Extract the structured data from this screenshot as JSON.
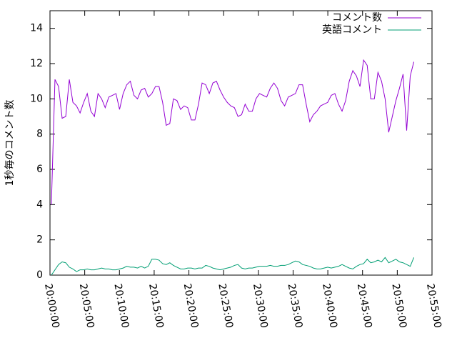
{
  "chart_data": {
    "type": "line",
    "ylabel": "1秒毎のコメント数",
    "x": [
      "20:00:12",
      "20:00:43",
      "20:01:14",
      "20:01:45",
      "20:02:16",
      "20:02:47",
      "20:03:18",
      "20:03:49",
      "20:04:20",
      "20:04:51",
      "20:05:22",
      "20:05:53",
      "20:06:24",
      "20:06:55",
      "20:07:26",
      "20:07:57",
      "20:08:28",
      "20:08:59",
      "20:09:30",
      "20:10:01",
      "20:10:32",
      "20:11:03",
      "20:11:34",
      "20:12:05",
      "20:12:36",
      "20:13:07",
      "20:13:38",
      "20:14:09",
      "20:14:40",
      "20:15:11",
      "20:15:42",
      "20:16:13",
      "20:16:44",
      "20:17:15",
      "20:17:46",
      "20:18:17",
      "20:18:48",
      "20:19:19",
      "20:19:50",
      "20:20:21",
      "20:20:52",
      "20:21:23",
      "20:21:54",
      "20:22:25",
      "20:22:56",
      "20:23:27",
      "20:23:58",
      "20:24:29",
      "20:25:00",
      "20:25:31",
      "20:26:02",
      "20:26:33",
      "20:27:04",
      "20:27:35",
      "20:28:06",
      "20:28:37",
      "20:29:08",
      "20:29:39",
      "20:30:10",
      "20:30:41",
      "20:31:12",
      "20:31:43",
      "20:32:14",
      "20:32:45",
      "20:33:16",
      "20:33:47",
      "20:34:18",
      "20:34:49",
      "20:35:20",
      "20:35:51",
      "20:36:22",
      "20:36:53",
      "20:37:24",
      "20:37:55",
      "20:38:26",
      "20:38:57",
      "20:39:28",
      "20:39:59",
      "20:40:30",
      "20:41:01",
      "20:41:32",
      "20:42:03",
      "20:42:34",
      "20:43:05",
      "20:43:36",
      "20:44:07",
      "20:44:38",
      "20:45:09",
      "20:45:40",
      "20:46:11",
      "20:46:42",
      "20:47:13",
      "20:47:44",
      "20:48:15",
      "20:48:46",
      "20:49:17",
      "20:49:48",
      "20:50:19",
      "20:50:50",
      "20:51:21",
      "20:51:52",
      "20:52:23"
    ],
    "series": [
      {
        "name": "コメント数",
        "color": "#9400d3",
        "values": [
          4.0,
          11.1,
          10.7,
          8.9,
          9.0,
          11.1,
          9.8,
          9.6,
          9.2,
          9.8,
          10.3,
          9.3,
          9.0,
          10.3,
          10.0,
          9.5,
          10.1,
          10.2,
          10.3,
          9.4,
          10.3,
          10.8,
          11.0,
          10.2,
          10.0,
          10.5,
          10.6,
          10.1,
          10.3,
          10.7,
          10.7,
          9.8,
          8.5,
          8.6,
          10.0,
          9.9,
          9.4,
          9.6,
          9.5,
          8.8,
          8.8,
          9.7,
          10.9,
          10.8,
          10.3,
          10.9,
          11.0,
          10.5,
          10.1,
          9.8,
          9.6,
          9.5,
          9.0,
          9.1,
          9.7,
          9.3,
          9.3,
          10.0,
          10.3,
          10.2,
          10.1,
          10.6,
          10.9,
          10.6,
          9.9,
          9.6,
          10.1,
          10.2,
          10.3,
          10.8,
          10.8,
          9.7,
          8.7,
          9.1,
          9.3,
          9.6,
          9.7,
          9.8,
          10.2,
          10.3,
          9.7,
          9.3,
          9.9,
          11.0,
          11.6,
          11.3,
          10.7,
          12.2,
          11.9,
          10.0,
          10.0,
          11.5,
          11.0,
          10.0,
          8.1,
          9.0,
          9.9,
          10.6,
          11.4,
          8.2,
          11.3,
          12.1
        ]
      },
      {
        "name": "英語コメント",
        "color": "#009e73",
        "values": [
          0.0,
          0.3,
          0.6,
          0.75,
          0.7,
          0.45,
          0.35,
          0.2,
          0.3,
          0.3,
          0.35,
          0.3,
          0.3,
          0.35,
          0.4,
          0.35,
          0.35,
          0.3,
          0.3,
          0.35,
          0.4,
          0.5,
          0.45,
          0.45,
          0.4,
          0.5,
          0.4,
          0.5,
          0.9,
          0.9,
          0.85,
          0.65,
          0.6,
          0.7,
          0.55,
          0.45,
          0.35,
          0.35,
          0.4,
          0.4,
          0.35,
          0.4,
          0.4,
          0.55,
          0.5,
          0.4,
          0.35,
          0.3,
          0.35,
          0.4,
          0.45,
          0.55,
          0.6,
          0.4,
          0.35,
          0.4,
          0.4,
          0.45,
          0.5,
          0.5,
          0.5,
          0.55,
          0.5,
          0.5,
          0.55,
          0.55,
          0.6,
          0.7,
          0.8,
          0.75,
          0.6,
          0.55,
          0.5,
          0.4,
          0.35,
          0.35,
          0.4,
          0.45,
          0.4,
          0.45,
          0.5,
          0.6,
          0.5,
          0.4,
          0.35,
          0.5,
          0.6,
          0.65,
          0.9,
          0.7,
          0.75,
          0.85,
          0.75,
          1.0,
          0.7,
          0.8,
          0.9,
          0.75,
          0.7,
          0.6,
          0.5,
          1.0
        ]
      }
    ],
    "xlim": [
      "20:00:00",
      "20:55:00"
    ],
    "xticks": [
      "20:00:00",
      "20:05:00",
      "20:10:00",
      "20:15:00",
      "20:20:00",
      "20:25:00",
      "20:30:00",
      "20:35:00",
      "20:40:00",
      "20:45:00",
      "20:50:00",
      "20:55:00"
    ],
    "ylim": [
      0,
      15
    ],
    "yticks": [
      0,
      2,
      4,
      6,
      8,
      10,
      12,
      14
    ],
    "legend": "top-right"
  }
}
